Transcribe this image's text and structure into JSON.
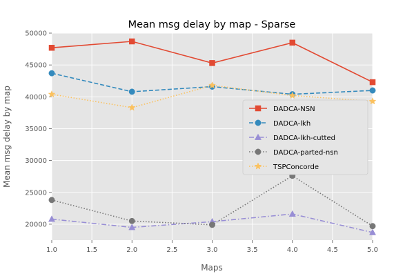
{
  "chart_data": {
    "type": "line",
    "title": "Mean msg delay by map - Sparse",
    "xlabel": "Maps",
    "ylabel": "Mean msg delay by map",
    "xlim": [
      1.0,
      5.0
    ],
    "ylim": [
      17500,
      50000
    ],
    "xticks": [
      "1.0",
      "1.5",
      "2.0",
      "2.5",
      "3.0",
      "3.5",
      "4.0",
      "4.5",
      "5.0"
    ],
    "yticks": [
      "20000",
      "25000",
      "30000",
      "35000",
      "40000",
      "45000",
      "50000"
    ],
    "grid": true,
    "legend_position": "center-right",
    "x": [
      1,
      2,
      3,
      4,
      5
    ],
    "series": [
      {
        "name": "DADCA-NSN",
        "values": [
          47700,
          48700,
          45300,
          48500,
          42300
        ],
        "color": "#E24A33",
        "marker": "square",
        "dash": "solid"
      },
      {
        "name": "DADCA-lkh",
        "values": [
          43700,
          40800,
          41600,
          40400,
          41000
        ],
        "color": "#348ABD",
        "marker": "circle",
        "dash": "dashed"
      },
      {
        "name": "DADCA-lkh-cutted",
        "values": [
          20800,
          19500,
          20400,
          21600,
          18700
        ],
        "color": "#988ED5",
        "marker": "triangle",
        "dash": "dashdot"
      },
      {
        "name": "DADCA-parted-nsn",
        "values": [
          23800,
          20500,
          19900,
          27600,
          19700
        ],
        "color": "#777777",
        "marker": "circle",
        "dash": "dotted"
      },
      {
        "name": "TSPConcorde",
        "values": [
          40400,
          38300,
          41800,
          40200,
          39300
        ],
        "color": "#FBC15E",
        "marker": "star",
        "dash": "dotted"
      }
    ]
  }
}
